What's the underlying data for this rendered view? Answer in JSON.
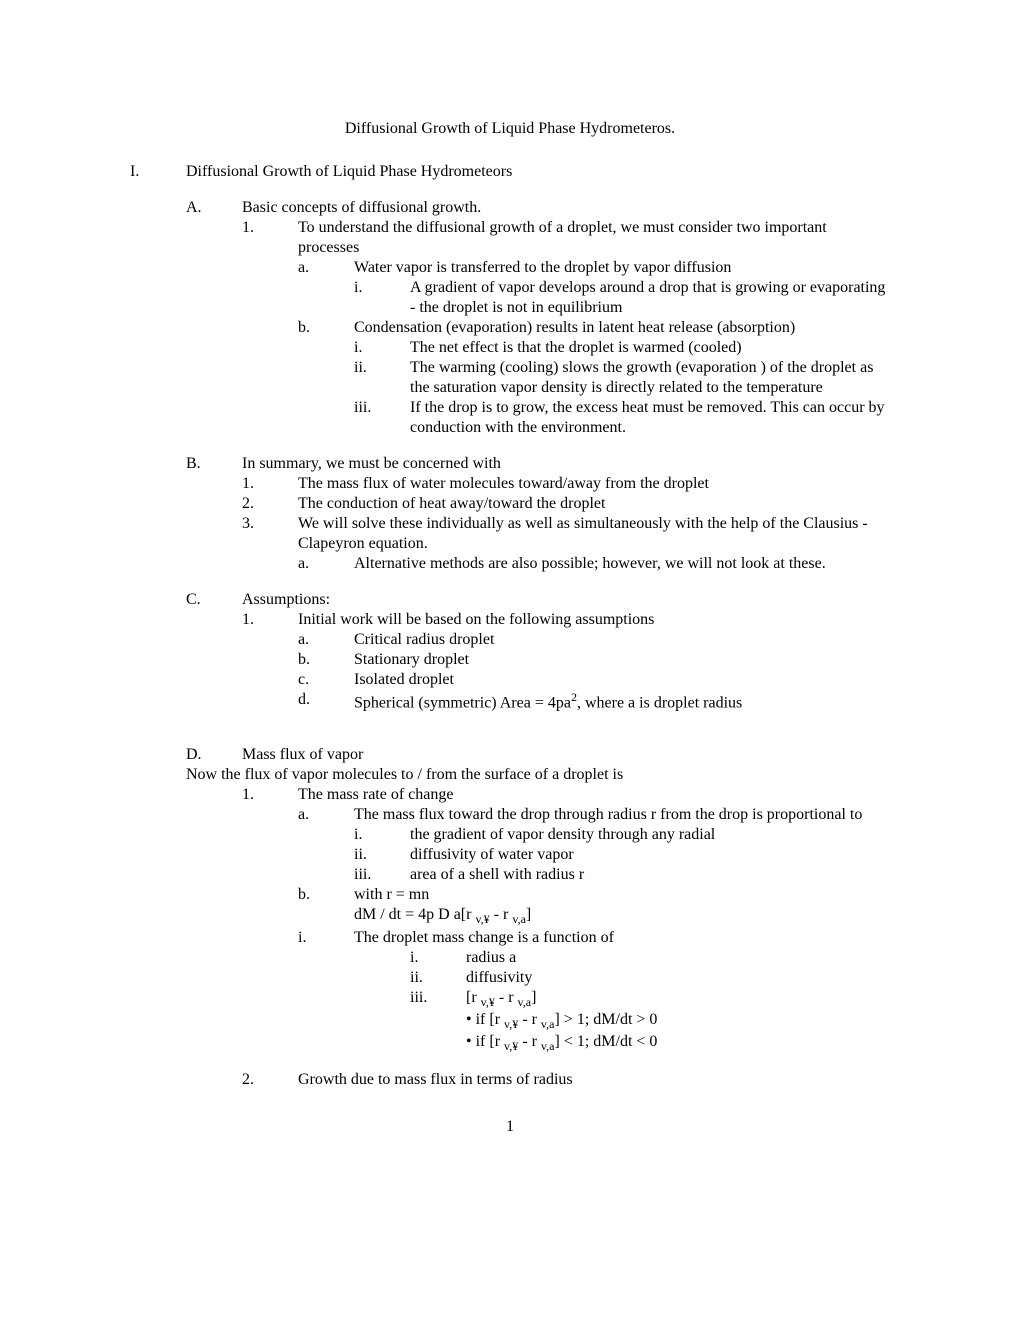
{
  "title": "Diffusional Growth of Liquid Phase Hydrometeros.",
  "pageNumber": "1",
  "outline": {
    "I": {
      "marker": "I.",
      "text": "Diffusional Growth of Liquid Phase Hydrometeors",
      "A": {
        "marker": "A.",
        "text": "Basic concepts of diffusional growth.",
        "1": {
          "marker": "1.",
          "text": "To understand the diffusional growth of a droplet, we must consider two important processes",
          "a": {
            "marker": "a.",
            "text": "Water vapor is transferred to the droplet by vapor diffusion",
            "i": {
              "marker": "i.",
              "text": "A gradient of vapor develops around a drop that is growing or evaporating -  the droplet is not in equilibrium"
            }
          },
          "b": {
            "marker": "b.",
            "text": "Condensation (evaporation) results in latent heat release (absorption)",
            "i": {
              "marker": "i.",
              "text": "The net effect is that the droplet is warmed (cooled)"
            },
            "ii": {
              "marker": "ii.",
              "text": "The warming (cooling) slows the growth (evaporation ) of the droplet as the saturation vapor density is directly related to the temperature"
            },
            "iii": {
              "marker": "iii.",
              "text": "If the drop is to grow, the excess heat must be removed.  This can occur by conduction with the environment."
            }
          }
        }
      },
      "B": {
        "marker": "B.",
        "text": "In summary, we must be concerned with",
        "1": {
          "marker": "1.",
          "text": "The mass flux of water molecules toward/away from the droplet"
        },
        "2": {
          "marker": "2.",
          "text": "The conduction of heat away/toward the droplet"
        },
        "3": {
          "marker": "3.",
          "text": "We will solve these individually as well as simultaneously with the help of the Clausius - Clapeyron equation.",
          "a": {
            "marker": "a.",
            "text": "Alternative methods are also possible; however, we will not look at these."
          }
        }
      },
      "C": {
        "marker": "C.",
        "text": "Assumptions:",
        "1": {
          "marker": "1.",
          "text": "Initial work will be based on the following assumptions",
          "a": {
            "marker": "a.",
            "text": "Critical radius droplet"
          },
          "b": {
            "marker": "b.",
            "text": "Stationary droplet"
          },
          "c": {
            "marker": "c.",
            "text": "Isolated droplet"
          },
          "d": {
            "marker": "d.",
            "text_html": "Spherical (symmetric) Area = 4pa<sup>2</sup>, where a is droplet radius"
          }
        }
      },
      "D": {
        "marker": "D.",
        "text": "Mass flux of vapor",
        "intro": "Now the flux of vapor molecules to / from the surface of a droplet is",
        "1": {
          "marker": "1.",
          "text": "The mass rate of change",
          "a": {
            "marker": "a.",
            "text": "The mass flux toward the drop through radius r from the drop is proportional to",
            "i": {
              "marker": "i.",
              "text": "the gradient of vapor density through any radial"
            },
            "ii": {
              "marker": "ii.",
              "text": "diffusivity of water vapor"
            },
            "iii": {
              "marker": "iii.",
              "text": "area of a shell with radius r"
            }
          },
          "b": {
            "marker": "b.",
            "text": "with r  = mn",
            "eq_html": "dM / dt  =  4p  D a[r <sub>v,¥</sub>  -  r <sub>v,a</sub>]"
          },
          "i_note": {
            "marker": "i.",
            "text": "The droplet mass change is a function of",
            "i": {
              "marker": "i.",
              "text": "radius a"
            },
            "ii": {
              "marker": "ii.",
              "text": "diffusivity"
            },
            "iii": {
              "marker": "iii.",
              "text_html": "[r <sub>v,¥</sub>  -  r <sub>v,a</sub>]",
              "b1_html": "•  if [r <sub>v,¥</sub>  -  r <sub>v,a</sub>] > 1;   dM/dt  > 0",
              "b2_html": "•  if [r <sub>v,¥</sub>  -  r <sub>v,a</sub>] < 1;   dM/dt  < 0"
            }
          }
        },
        "2": {
          "marker": "2.",
          "text": "Growth due to mass flux in terms of radius"
        }
      }
    }
  }
}
